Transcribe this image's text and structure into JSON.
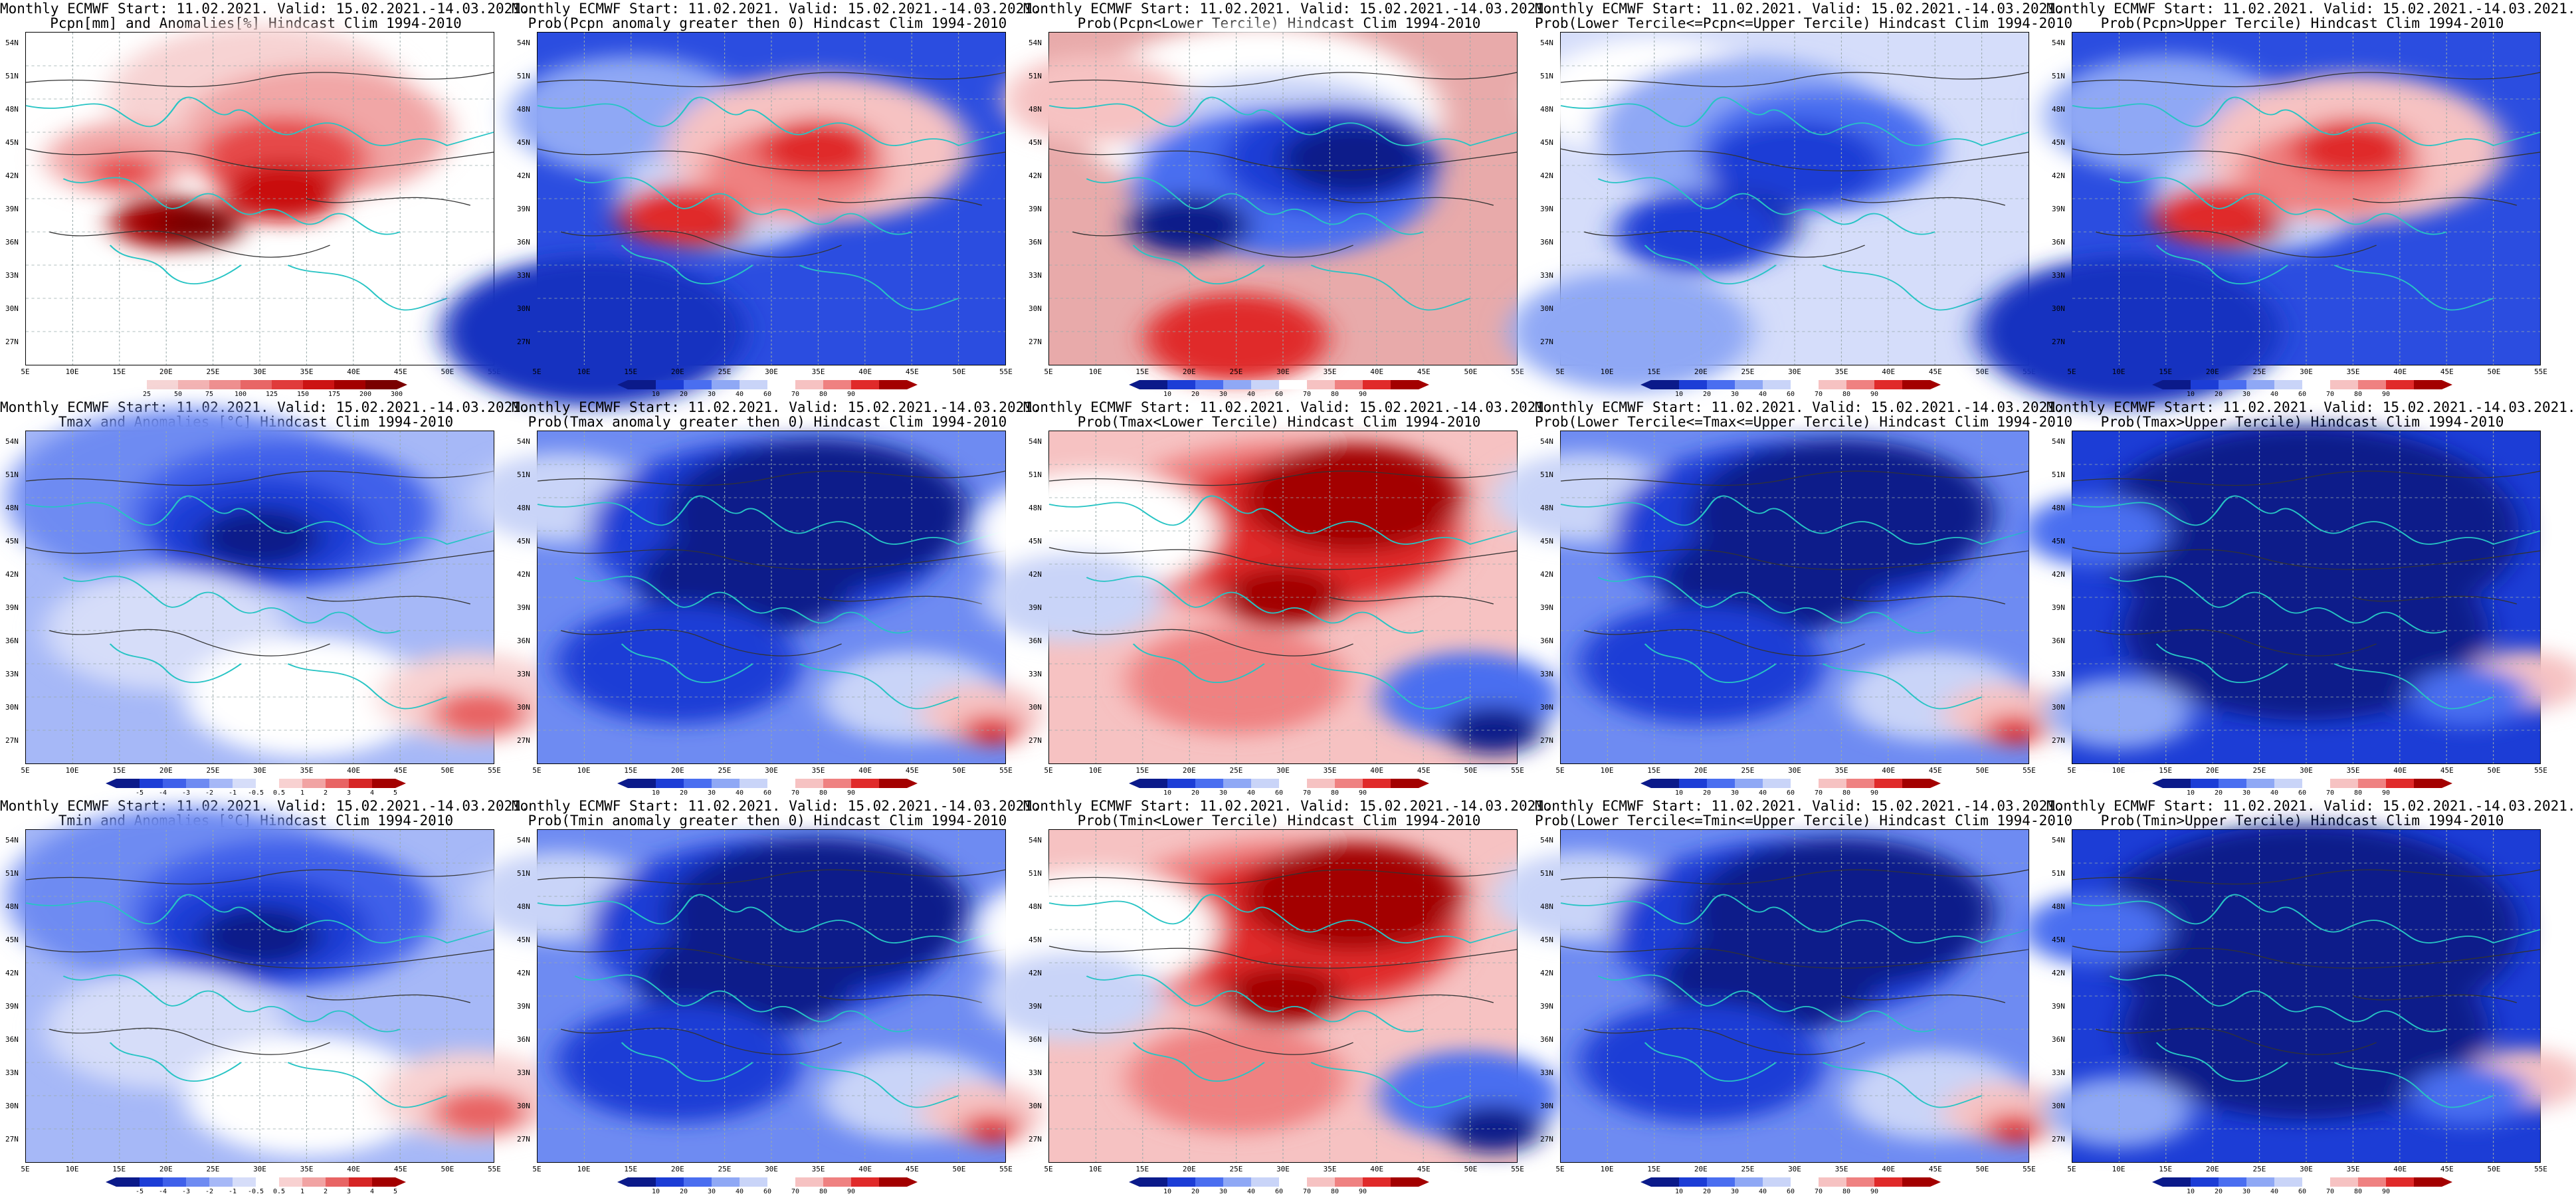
{
  "panels": [
    {
      "id": "p00",
      "title1": "Monthly ECMWF Start: 11.02.2021. Valid: 15.02.2021.-14.03.2021.",
      "title2": "Pcpn[mm] and Anomalies[%] Hindcast Clim 1994-2010",
      "scheme": "pcpn-anom",
      "cbar": [
        "25",
        "50",
        "75",
        "100",
        "125",
        "150",
        "175",
        "200",
        "300"
      ]
    },
    {
      "id": "p01",
      "title1": "Monthly ECMWF Start: 11.02.2021. Valid: 15.02.2021.-14.03.2021.",
      "title2": "Prob(Pcpn anomaly greater then 0) Hindcast Clim 1994-2010",
      "scheme": "pcpn-warm",
      "cbar": [
        "10",
        "20",
        "30",
        "40",
        "60",
        "70",
        "80",
        "90"
      ]
    },
    {
      "id": "p02",
      "title1": "Monthly ECMWF Start: 11.02.2021. Valid: 15.02.2021.-14.03.2021.",
      "title2": "Prob(Pcpn<Lower Tercile) Hindcast Clim 1994-2010",
      "scheme": "pcpn-lower",
      "cbar": [
        "10",
        "20",
        "30",
        "40",
        "60",
        "70",
        "80",
        "90"
      ]
    },
    {
      "id": "p03",
      "title1": "Monthly ECMWF Start: 11.02.2021. Valid: 15.02.2021.-14.03.2021.",
      "title2": "Prob(Lower Tercile<=Pcpn<=Upper Tercile) Hindcast Clim 1994-2010",
      "scheme": "pcpn-mid",
      "cbar": [
        "10",
        "20",
        "30",
        "40",
        "60",
        "70",
        "80",
        "90"
      ]
    },
    {
      "id": "p04",
      "title1": "Monthly ECMWF Start: 11.02.2021. Valid: 15.02.2021.-14.03.2021.",
      "title2": "Prob(Pcpn>Upper Tercile) Hindcast Clim 1994-2010",
      "scheme": "pcpn-warm",
      "cbar": [
        "10",
        "20",
        "30",
        "40",
        "60",
        "70",
        "80",
        "90"
      ]
    },
    {
      "id": "p10",
      "title1": "Monthly ECMWF Start: 11.02.2021. Valid: 15.02.2021.-14.03.2021.",
      "title2": "Tmax and Anomalies [°C] Hindcast Clim 1994-2010",
      "scheme": "temp-anom",
      "cbar": [
        "-5",
        "-4",
        "-3",
        "-2",
        "-1",
        "-0.5",
        "0.5",
        "1",
        "2",
        "3",
        "4",
        "5"
      ]
    },
    {
      "id": "p11",
      "title1": "Monthly ECMWF Start: 11.02.2021. Valid: 15.02.2021.-14.03.2021.",
      "title2": "Prob(Tmax anomaly greater then 0) Hindcast Clim 1994-2010",
      "scheme": "cold",
      "cbar": [
        "10",
        "20",
        "30",
        "40",
        "60",
        "70",
        "80",
        "90"
      ]
    },
    {
      "id": "p12",
      "title1": "Monthly ECMWF Start: 11.02.2021. Valid: 15.02.2021.-14.03.2021.",
      "title2": "Prob(Tmax<Lower Tercile) Hindcast Clim 1994-2010",
      "scheme": "hot",
      "cbar": [
        "10",
        "20",
        "30",
        "40",
        "60",
        "70",
        "80",
        "90"
      ]
    },
    {
      "id": "p13",
      "title1": "Monthly ECMWF Start: 11.02.2021. Valid: 15.02.2021.-14.03.2021.",
      "title2": "Prob(Lower Tercile<=Tmax<=Upper Tercile) Hindcast Clim 1994-2010",
      "scheme": "cold",
      "cbar": [
        "10",
        "20",
        "30",
        "40",
        "60",
        "70",
        "80",
        "90"
      ]
    },
    {
      "id": "p14",
      "title1": "Monthly ECMWF Start: 11.02.2021. Valid: 15.02.2021.-14.03.2021.",
      "title2": "Prob(Tmax>Upper Tercile) Hindcast Clim 1994-2010",
      "scheme": "deepcold",
      "cbar": [
        "10",
        "20",
        "30",
        "40",
        "60",
        "70",
        "80",
        "90"
      ]
    },
    {
      "id": "p20",
      "title1": "Monthly ECMWF Start: 11.02.2021. Valid: 15.02.2021.-14.03.2021.",
      "title2": "Tmin and Anomalies [°C] Hindcast Clim 1994-2010",
      "scheme": "temp-anom",
      "cbar": [
        "-5",
        "-4",
        "-3",
        "-2",
        "-1",
        "-0.5",
        "0.5",
        "1",
        "2",
        "3",
        "4",
        "5"
      ]
    },
    {
      "id": "p21",
      "title1": "Monthly ECMWF Start: 11.02.2021. Valid: 15.02.2021.-14.03.2021.",
      "title2": "Prob(Tmin anomaly greater then 0) Hindcast Clim 1994-2010",
      "scheme": "cold",
      "cbar": [
        "10",
        "20",
        "30",
        "40",
        "60",
        "70",
        "80",
        "90"
      ]
    },
    {
      "id": "p22",
      "title1": "Monthly ECMWF Start: 11.02.2021. Valid: 15.02.2021.-14.03.2021.",
      "title2": "Prob(Tmin<Lower Tercile) Hindcast Clim 1994-2010",
      "scheme": "hot",
      "cbar": [
        "10",
        "20",
        "30",
        "40",
        "60",
        "70",
        "80",
        "90"
      ]
    },
    {
      "id": "p23",
      "title1": "Monthly ECMWF Start: 11.02.2021. Valid: 15.02.2021.-14.03.2021.",
      "title2": "Prob(Lower Tercile<=Tmin<=Upper Tercile) Hindcast Clim 1994-2010",
      "scheme": "cold",
      "cbar": [
        "10",
        "20",
        "30",
        "40",
        "60",
        "70",
        "80",
        "90"
      ]
    },
    {
      "id": "p24",
      "title1": "Monthly ECMWF Start: 11.02.2021. Valid: 15.02.2021.-14.03.2021.",
      "title2": "Prob(Tmin>Upper Tercile) Hindcast Clim 1994-2010",
      "scheme": "deepcold",
      "cbar": [
        "10",
        "20",
        "30",
        "40",
        "60",
        "70",
        "80",
        "90"
      ]
    }
  ],
  "lat_ticks": [
    "54N",
    "51N",
    "48N",
    "45N",
    "42N",
    "39N",
    "36N",
    "33N",
    "30N",
    "27N"
  ],
  "lon_ticks": [
    "5E",
    "10E",
    "15E",
    "20E",
    "25E",
    "30E",
    "35E",
    "40E",
    "45E",
    "50E",
    "55E"
  ],
  "colors": {
    "cbar_prob": [
      "#0b1a8a",
      "#1c3dd6",
      "#4a6ef0",
      "#8fa8f5",
      "#c9d4f8",
      "#ffffff",
      "#f6c2c2",
      "#ef8181",
      "#e02a2a",
      "#a30000"
    ],
    "cbar_pcpn": [
      "#ffffff",
      "#f6d5d5",
      "#f3b3b3",
      "#ee8f8f",
      "#e86666",
      "#e03b3b",
      "#cc1414",
      "#a30000",
      "#7a0000"
    ],
    "cbar_temp": [
      "#0b1a8a",
      "#1c3dd6",
      "#3f60ea",
      "#6e8bf2",
      "#a6b8f7",
      "#d6ddf9",
      "#ffffff",
      "#f8d1d1",
      "#f1a3a3",
      "#e86464",
      "#d62525",
      "#a30000"
    ],
    "coast": "#27c4c4"
  }
}
